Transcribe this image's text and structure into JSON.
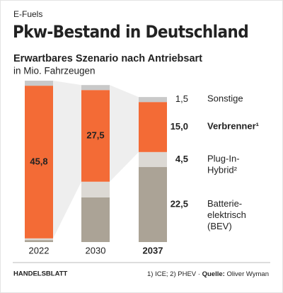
{
  "chart_data": {
    "type": "stacked-bar",
    "kicker": "E-Fuels",
    "title": "Pkw-Bestand in Deutschland",
    "subtitle": "Erwartbares Szenario nach Antriebsart",
    "unit": "in Mio. Fahrzeugen",
    "categories": [
      "2022",
      "2030",
      "2037"
    ],
    "series": [
      {
        "name": "Batterie-\nelektrisch\n(BEV)",
        "color": "#aba396",
        "values": [
          0.6,
          13.4,
          22.5
        ],
        "value_labels": [
          null,
          null,
          "22,5"
        ]
      },
      {
        "name": "Plug-In-\nHybrid²",
        "color": "#dcd9d4",
        "values": [
          0.5,
          4.7,
          4.5
        ],
        "value_labels": [
          null,
          null,
          "4,5"
        ]
      },
      {
        "name": "Verbrenner¹",
        "color": "#f36b36",
        "values": [
          45.8,
          27.5,
          15.0
        ],
        "value_labels": [
          "45,8",
          "27,5",
          "15,0"
        ],
        "emphasis": true
      },
      {
        "name": "Sonstige",
        "color": "#c9c9c9",
        "values": [
          1.5,
          1.5,
          1.5
        ],
        "value_labels": [
          null,
          null,
          "1,5"
        ]
      }
    ],
    "publisher": "HANDELSBLATT",
    "footnote": "1) ICE; 2) PHEV ·",
    "source_label": "Quelle:",
    "source": "Oliver Wyman"
  }
}
